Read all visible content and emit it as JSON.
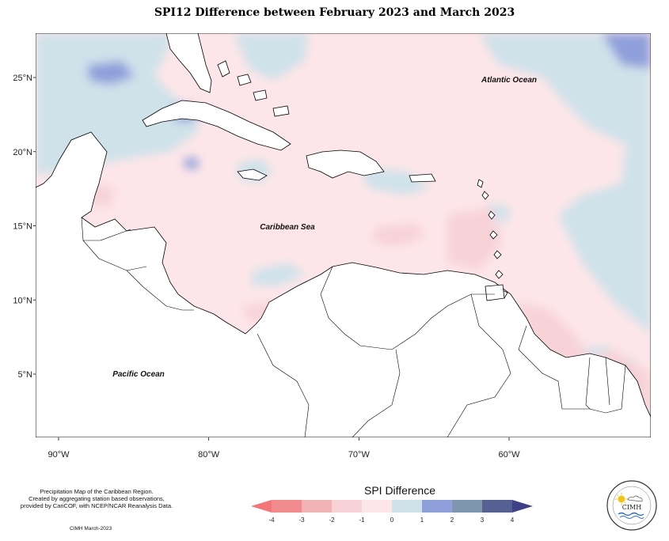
{
  "title": "SPI12 Difference between February 2023 and March 2023",
  "map": {
    "lat_ticks": [
      {
        "value": 25,
        "label": "25°N"
      },
      {
        "value": 20,
        "label": "20°N"
      },
      {
        "value": 15,
        "label": "15°N"
      },
      {
        "value": 10,
        "label": "10°N"
      },
      {
        "value": 5,
        "label": "5°N"
      }
    ],
    "lon_ticks": [
      {
        "value": -90,
        "label": "90°W"
      },
      {
        "value": -80,
        "label": "80°W"
      },
      {
        "value": -70,
        "label": "70°W"
      },
      {
        "value": -60,
        "label": "60°W"
      }
    ],
    "ocean_labels": {
      "atlantic": "Atlantic Ocean",
      "caribbean": "Caribbean Sea",
      "pacific": "Pacific Ocean"
    }
  },
  "legend": {
    "title": "SPI Difference",
    "ticks": [
      "-4",
      "-3",
      "-2",
      "-1",
      "0",
      "1",
      "2",
      "3",
      "4"
    ],
    "colors": [
      "#f28b8e",
      "#f2b3b6",
      "#f7d3d8",
      "#fde6e9",
      "#cfe2ea",
      "#8f9fdb",
      "#7f97ae",
      "#566092"
    ],
    "low_arrow_color": "#f4757a",
    "high_arrow_color": "#3f3f86"
  },
  "credits": {
    "line1": "Precipitation Map of the Caribbean Region.",
    "line2": "Created by aggregating station based observations,",
    "line3": "provided by CariCOF, with NCEP/NCAR Reanalysis Data.",
    "date": "CIMH March-2023"
  },
  "logo": {
    "text": "CIMH",
    "arc_top": "Caribbean Institute for",
    "arc_bottom": "Meteorology and Hydrology"
  }
}
